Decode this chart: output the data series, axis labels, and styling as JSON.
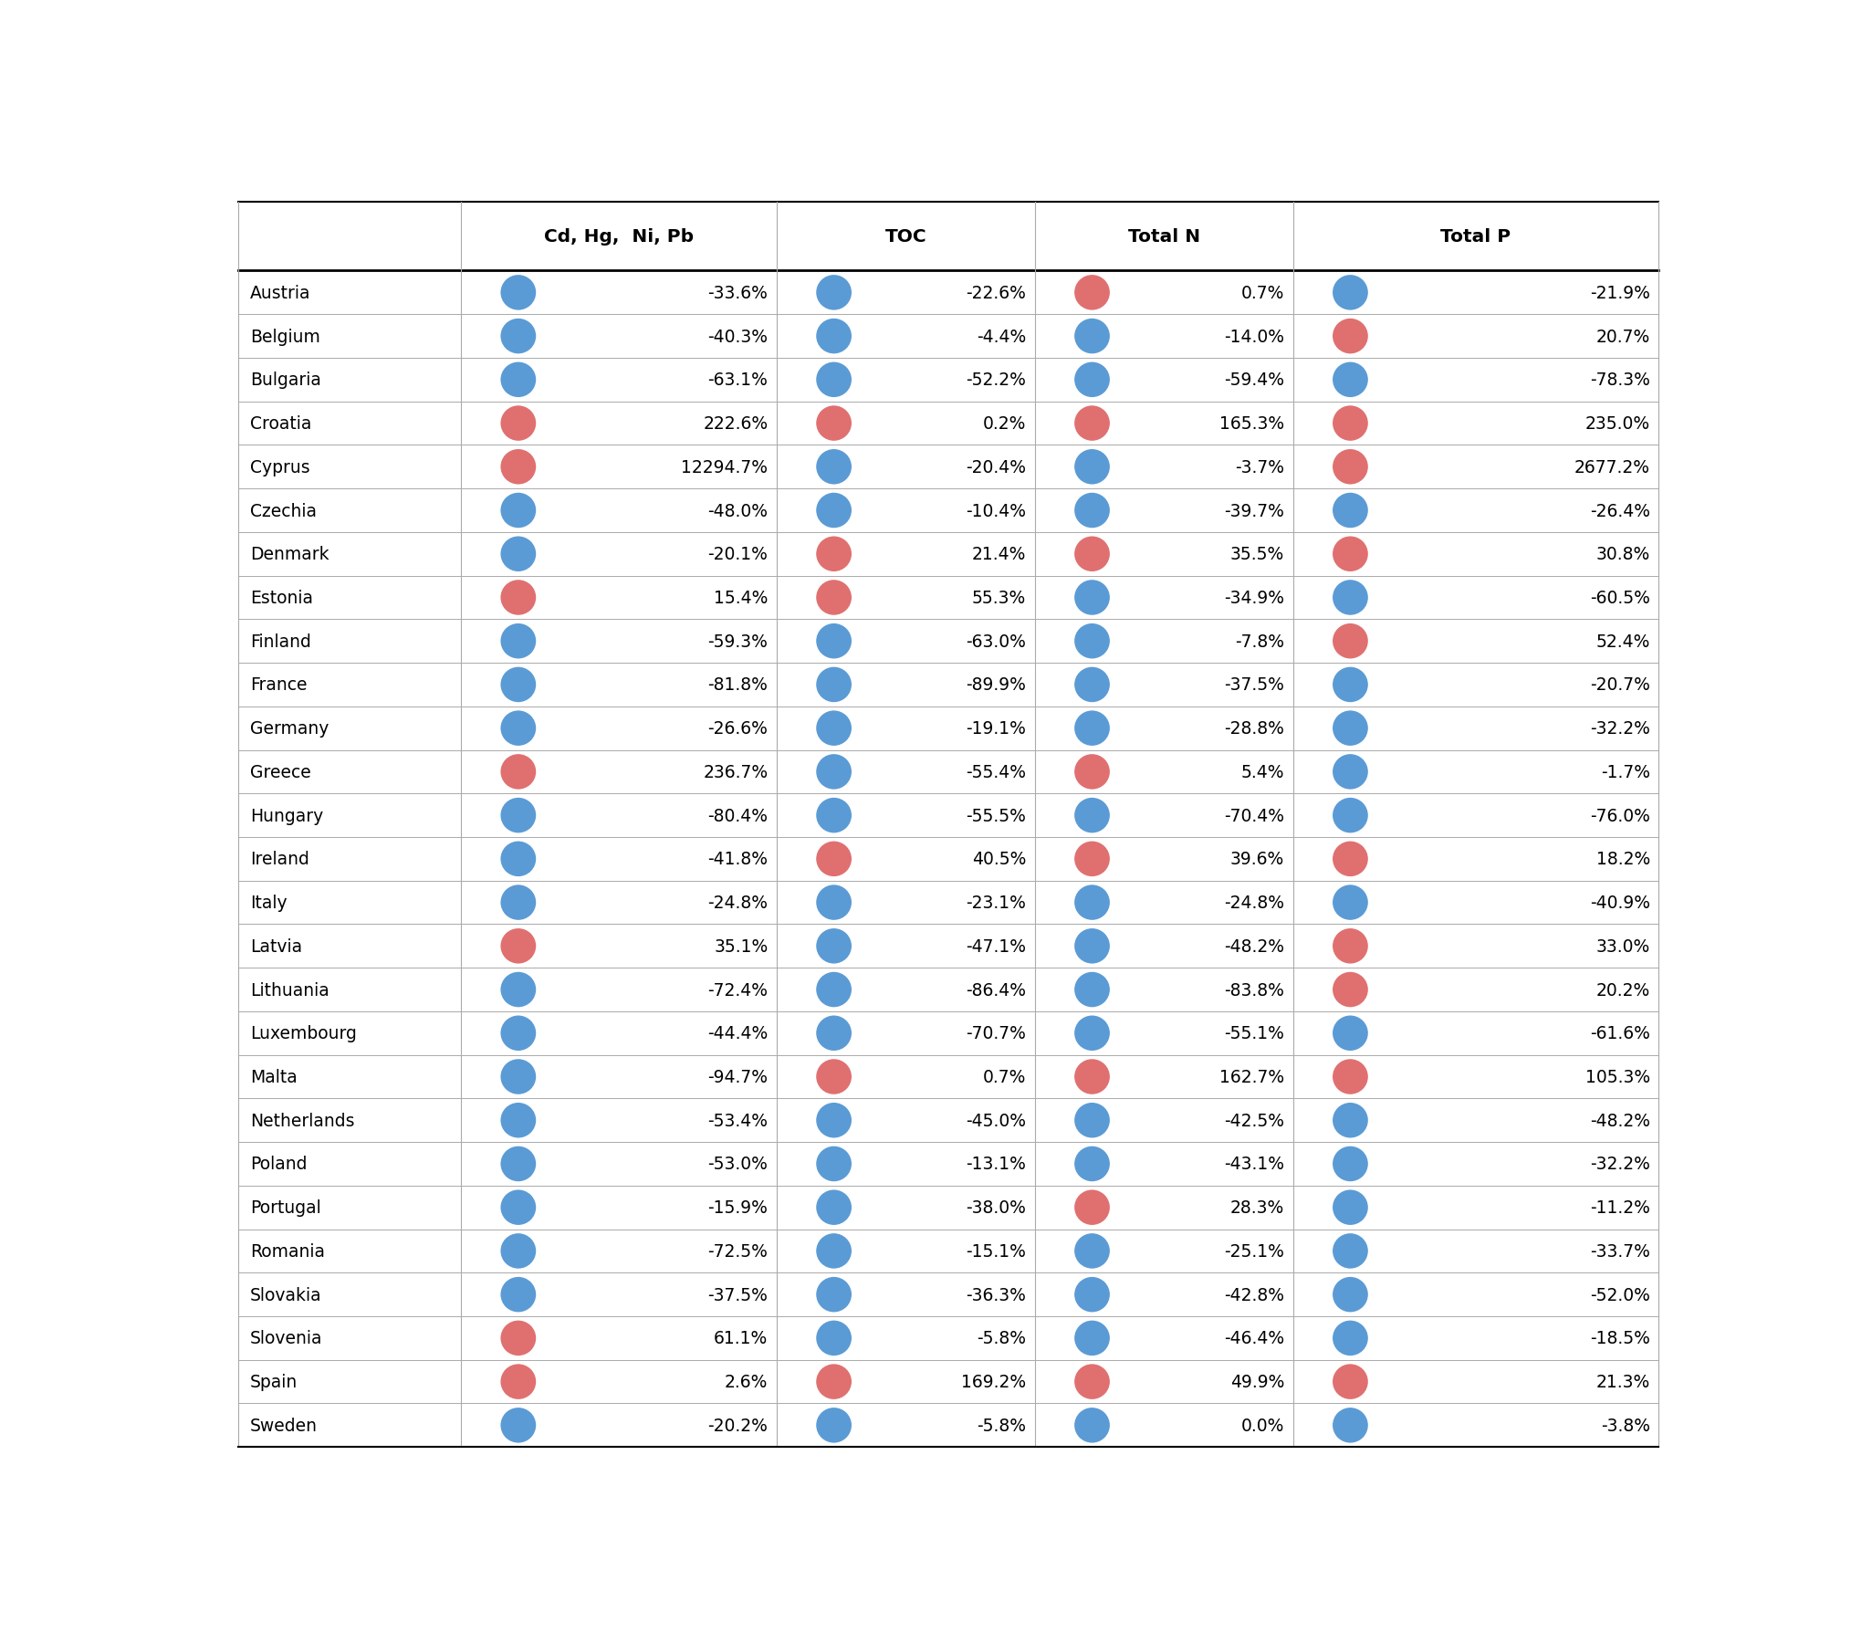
{
  "countries": [
    "Austria",
    "Belgium",
    "Bulgaria",
    "Croatia",
    "Cyprus",
    "Czechia",
    "Denmark",
    "Estonia",
    "Finland",
    "France",
    "Germany",
    "Greece",
    "Hungary",
    "Ireland",
    "Italy",
    "Latvia",
    "Lithuania",
    "Luxembourg",
    "Malta",
    "Netherlands",
    "Poland",
    "Portugal",
    "Romania",
    "Slovakia",
    "Slovenia",
    "Spain",
    "Sweden"
  ],
  "columns": [
    "Cd, Hg,  Ni, Pb",
    "TOC",
    "Total N",
    "Total P"
  ],
  "col1_values": [
    "-33.6%",
    "-40.3%",
    "-63.1%",
    "222.6%",
    "12294.7%",
    "-48.0%",
    "-20.1%",
    "15.4%",
    "-59.3%",
    "-81.8%",
    "-26.6%",
    "236.7%",
    "-80.4%",
    "-41.8%",
    "-24.8%",
    "35.1%",
    "-72.4%",
    "-44.4%",
    "-94.7%",
    "-53.4%",
    "-53.0%",
    "-15.9%",
    "-72.5%",
    "-37.5%",
    "61.1%",
    "2.6%",
    "-20.2%"
  ],
  "col1_colors": [
    "blue",
    "blue",
    "blue",
    "red",
    "red",
    "blue",
    "blue",
    "red",
    "blue",
    "blue",
    "blue",
    "red",
    "blue",
    "blue",
    "blue",
    "red",
    "blue",
    "blue",
    "blue",
    "blue",
    "blue",
    "blue",
    "blue",
    "blue",
    "red",
    "red",
    "blue"
  ],
  "col2_values": [
    "-22.6%",
    "-4.4%",
    "-52.2%",
    "0.2%",
    "-20.4%",
    "-10.4%",
    "21.4%",
    "55.3%",
    "-63.0%",
    "-89.9%",
    "-19.1%",
    "-55.4%",
    "-55.5%",
    "40.5%",
    "-23.1%",
    "-47.1%",
    "-86.4%",
    "-70.7%",
    "0.7%",
    "-45.0%",
    "-13.1%",
    "-38.0%",
    "-15.1%",
    "-36.3%",
    "-5.8%",
    "169.2%",
    "-5.8%"
  ],
  "col2_colors": [
    "blue",
    "blue",
    "blue",
    "red",
    "blue",
    "blue",
    "red",
    "red",
    "blue",
    "blue",
    "blue",
    "blue",
    "blue",
    "red",
    "blue",
    "blue",
    "blue",
    "blue",
    "red",
    "blue",
    "blue",
    "blue",
    "blue",
    "blue",
    "blue",
    "red",
    "blue"
  ],
  "col3_values": [
    "0.7%",
    "-14.0%",
    "-59.4%",
    "165.3%",
    "-3.7%",
    "-39.7%",
    "35.5%",
    "-34.9%",
    "-7.8%",
    "-37.5%",
    "-28.8%",
    "5.4%",
    "-70.4%",
    "39.6%",
    "-24.8%",
    "-48.2%",
    "-83.8%",
    "-55.1%",
    "162.7%",
    "-42.5%",
    "-43.1%",
    "28.3%",
    "-25.1%",
    "-42.8%",
    "-46.4%",
    "49.9%",
    "0.0%"
  ],
  "col3_colors": [
    "red",
    "blue",
    "blue",
    "red",
    "blue",
    "blue",
    "red",
    "blue",
    "blue",
    "blue",
    "blue",
    "red",
    "blue",
    "red",
    "blue",
    "blue",
    "blue",
    "blue",
    "red",
    "blue",
    "blue",
    "red",
    "blue",
    "blue",
    "blue",
    "red",
    "blue"
  ],
  "col4_values": [
    "-21.9%",
    "20.7%",
    "-78.3%",
    "235.0%",
    "2677.2%",
    "-26.4%",
    "30.8%",
    "-60.5%",
    "52.4%",
    "-20.7%",
    "-32.2%",
    "-1.7%",
    "-76.0%",
    "18.2%",
    "-40.9%",
    "33.0%",
    "20.2%",
    "-61.6%",
    "105.3%",
    "-48.2%",
    "-32.2%",
    "-11.2%",
    "-33.7%",
    "-52.0%",
    "-18.5%",
    "21.3%",
    "-3.8%"
  ],
  "col4_colors": [
    "blue",
    "red",
    "blue",
    "red",
    "red",
    "blue",
    "red",
    "blue",
    "red",
    "blue",
    "blue",
    "blue",
    "blue",
    "red",
    "blue",
    "red",
    "red",
    "blue",
    "red",
    "blue",
    "blue",
    "blue",
    "blue",
    "blue",
    "blue",
    "red",
    "blue"
  ],
  "blue_color": "#5B9BD5",
  "red_color": "#E07070",
  "bg_color": "#FFFFFF",
  "line_color": "#AAAAAA",
  "header_line_color": "#000000",
  "text_color": "#000000",
  "font_size": 13.5,
  "header_font_size": 14.5
}
